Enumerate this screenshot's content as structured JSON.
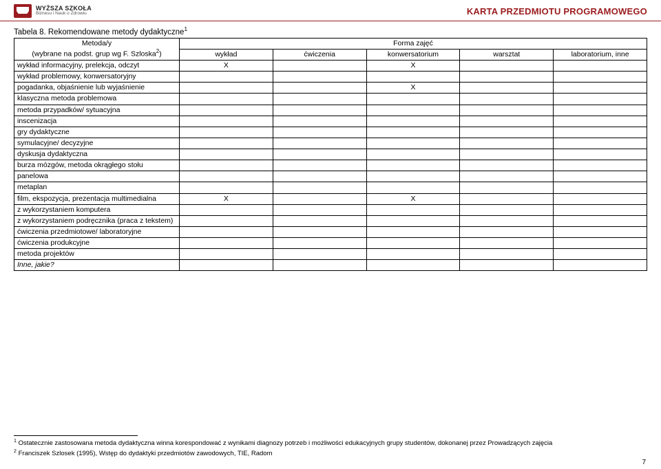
{
  "header": {
    "logo_top": "WYŻSZA SZKOŁA",
    "logo_bottom": "Biznesu i Nauk o Zdrowiu",
    "karta_title": "KARTA PRZEDMIOTU PROGRAMOWEGO"
  },
  "table": {
    "title_prefix": "Tabela 8. Rekomendowane metody dydaktyczne",
    "title_sup": "1",
    "col0_line1": "Metoda/y",
    "col0_line2_prefix": "(wybrane na podst. grup wg F. Szloska",
    "col0_line2_sup": "2",
    "col0_line2_suffix": ")",
    "forma": "Forma zajęć",
    "cols": [
      "wykład",
      "ćwiczenia",
      "konwersatorium",
      "warsztat",
      "laboratorium, inne"
    ],
    "rows": [
      {
        "label": "wykład informacyjny, prelekcja, odczyt",
        "marks": [
          "X",
          "",
          "X",
          "",
          ""
        ]
      },
      {
        "label": "wykład problemowy, konwersatoryjny",
        "marks": [
          "",
          "",
          "",
          "",
          ""
        ]
      },
      {
        "label": "pogadanka, objaśnienie lub wyjaśnienie",
        "marks": [
          "",
          "",
          "X",
          "",
          ""
        ]
      },
      {
        "label": "klasyczna metoda problemowa",
        "marks": [
          "",
          "",
          "",
          "",
          ""
        ]
      },
      {
        "label": "metoda przypadków/ sytuacyjna",
        "marks": [
          "",
          "",
          "",
          "",
          ""
        ]
      },
      {
        "label": "inscenizacja",
        "marks": [
          "",
          "",
          "",
          "",
          ""
        ]
      },
      {
        "label": "gry dydaktyczne",
        "marks": [
          "",
          "",
          "",
          "",
          ""
        ]
      },
      {
        "label": "symulacyjne/ decyzyjne",
        "marks": [
          "",
          "",
          "",
          "",
          ""
        ]
      },
      {
        "label": "dyskusja dydaktyczna",
        "marks": [
          "",
          "",
          "",
          "",
          ""
        ]
      },
      {
        "label": "burza mózgów, metoda okrągłego stołu",
        "marks": [
          "",
          "",
          "",
          "",
          ""
        ]
      },
      {
        "label": "panelowa",
        "marks": [
          "",
          "",
          "",
          "",
          ""
        ]
      },
      {
        "label": "metaplan",
        "marks": [
          "",
          "",
          "",
          "",
          ""
        ]
      },
      {
        "label": "film, ekspozycja, prezentacja multimedialna",
        "marks": [
          "X",
          "",
          "X",
          "",
          ""
        ]
      },
      {
        "label": "z wykorzystaniem komputera",
        "marks": [
          "",
          "",
          "",
          "",
          ""
        ]
      },
      {
        "label": "z wykorzystaniem podręcznika (praca z tekstem)",
        "marks": [
          "",
          "",
          "",
          "",
          ""
        ]
      },
      {
        "label": "ćwiczenia przedmiotowe/ laboratoryjne",
        "marks": [
          "",
          "",
          "",
          "",
          ""
        ]
      },
      {
        "label": "ćwiczenia produkcyjne",
        "marks": [
          "",
          "",
          "",
          "",
          ""
        ]
      },
      {
        "label": "metoda projektów",
        "marks": [
          "",
          "",
          "",
          "",
          ""
        ]
      },
      {
        "label": "Inne, jakie?",
        "marks": [
          "",
          "",
          "",
          "",
          ""
        ],
        "italic": true
      }
    ]
  },
  "footnotes": {
    "f1_sup": "1",
    "f1": " Ostatecznie zastosowana metoda dydaktyczna winna korespondować z wynikami diagnozy potrzeb i możliwości edukacyjnych grupy studentów, dokonanej przez Prowadzących zajęcia",
    "f2_sup": "2",
    "f2": " Franciszek Szlosek (1995), Wstęp do dydaktyki przedmiotów zawodowych, TIE, Radom"
  },
  "page_number": "7",
  "colors": {
    "brand": "#9a1c1f",
    "text": "#000000",
    "background": "#ffffff"
  }
}
